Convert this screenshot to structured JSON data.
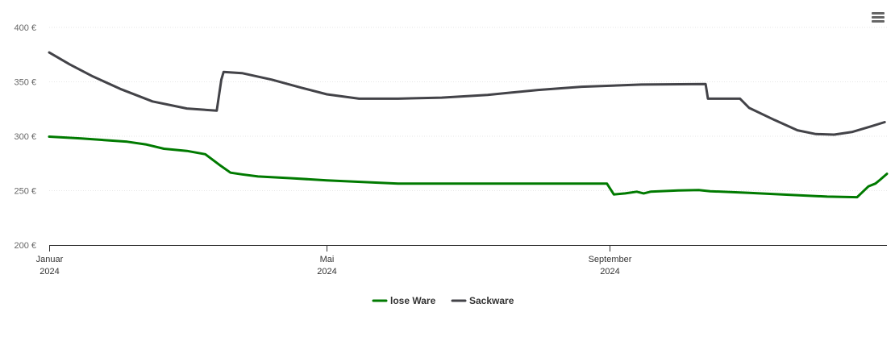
{
  "chart_data": {
    "type": "line",
    "ylim": [
      200,
      400
    ],
    "y_ticks": [
      "200 €",
      "250 €",
      "300 €",
      "350 €",
      "400 €"
    ],
    "y_tick_values": [
      200,
      250,
      300,
      350,
      400
    ],
    "x_range": [
      "2024-01-01",
      "2024-12-31"
    ],
    "x_ticks": [
      {
        "date": "2024-01-01",
        "label": "Januar",
        "year": "2024"
      },
      {
        "date": "2024-05-01",
        "label": "Mai",
        "year": "2024"
      },
      {
        "date": "2024-09-01",
        "label": "September",
        "year": "2024"
      }
    ],
    "grid": "horizontal",
    "legend_position": "bottom-center",
    "series": [
      {
        "name": "lose Ware",
        "color": "#007a00",
        "points": [
          [
            "2024-01-01",
            299.6
          ],
          [
            "2024-01-15",
            298.0
          ],
          [
            "2024-02-04",
            295.0
          ],
          [
            "2024-02-12",
            292.5
          ],
          [
            "2024-02-20",
            288.5
          ],
          [
            "2024-03-01",
            286.5
          ],
          [
            "2024-03-09",
            283.5
          ],
          [
            "2024-03-15",
            274.0
          ],
          [
            "2024-03-20",
            266.5
          ],
          [
            "2024-03-25",
            265.0
          ],
          [
            "2024-04-01",
            263.0
          ],
          [
            "2024-04-15",
            261.5
          ],
          [
            "2024-05-01",
            259.5
          ],
          [
            "2024-06-01",
            256.5
          ],
          [
            "2024-08-31",
            256.5
          ],
          [
            "2024-09-03",
            246.5
          ],
          [
            "2024-09-08",
            247.5
          ],
          [
            "2024-09-13",
            249.0
          ],
          [
            "2024-09-16",
            247.5
          ],
          [
            "2024-09-19",
            249.0
          ],
          [
            "2024-10-01",
            250.2
          ],
          [
            "2024-10-10",
            250.5
          ],
          [
            "2024-10-15",
            249.5
          ],
          [
            "2024-11-01",
            248.0
          ],
          [
            "2024-11-20",
            246.0
          ],
          [
            "2024-12-05",
            244.5
          ],
          [
            "2024-12-18",
            244.0
          ],
          [
            "2024-12-20",
            248.0
          ],
          [
            "2024-12-23",
            254.0
          ],
          [
            "2024-12-26",
            256.5
          ],
          [
            "2024-12-28",
            260.0
          ],
          [
            "2024-12-31",
            265.5
          ]
        ]
      },
      {
        "name": "Sackware",
        "color": "#434348",
        "points": [
          [
            "2024-01-01",
            377.0
          ],
          [
            "2024-01-10",
            366.0
          ],
          [
            "2024-01-20",
            355.0
          ],
          [
            "2024-02-01",
            343.5
          ],
          [
            "2024-02-15",
            332.0
          ],
          [
            "2024-03-01",
            325.5
          ],
          [
            "2024-03-14",
            323.5
          ],
          [
            "2024-03-16",
            352.0
          ],
          [
            "2024-03-17",
            359.0
          ],
          [
            "2024-03-25",
            358.0
          ],
          [
            "2024-04-07",
            352.0
          ],
          [
            "2024-04-20",
            344.5
          ],
          [
            "2024-05-01",
            338.5
          ],
          [
            "2024-05-15",
            334.5
          ],
          [
            "2024-06-01",
            334.5
          ],
          [
            "2024-06-20",
            335.5
          ],
          [
            "2024-07-10",
            338.0
          ],
          [
            "2024-08-01",
            342.5
          ],
          [
            "2024-08-20",
            345.5
          ],
          [
            "2024-09-15",
            347.5
          ],
          [
            "2024-10-13",
            348.0
          ],
          [
            "2024-10-14",
            334.5
          ],
          [
            "2024-10-28",
            334.5
          ],
          [
            "2024-11-01",
            326.0
          ],
          [
            "2024-11-12",
            315.0
          ],
          [
            "2024-11-22",
            305.5
          ],
          [
            "2024-11-30",
            302.0
          ],
          [
            "2024-12-08",
            301.5
          ],
          [
            "2024-12-16",
            304.0
          ],
          [
            "2024-12-24",
            309.0
          ],
          [
            "2024-12-30",
            313.0
          ]
        ]
      }
    ]
  },
  "menu": {
    "icon": "hamburger-menu-icon"
  }
}
